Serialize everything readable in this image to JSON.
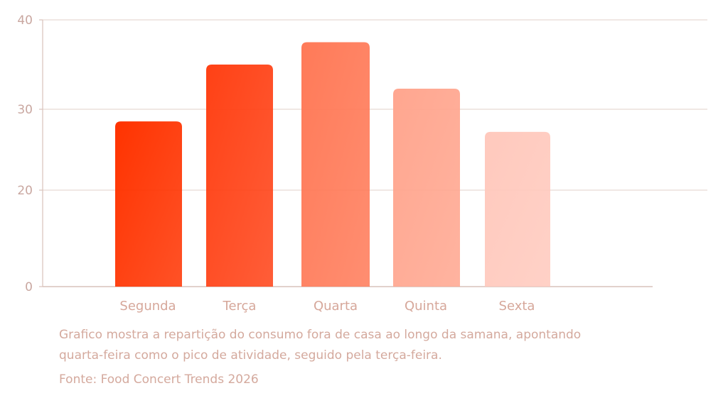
{
  "chart_data": {
    "type": "bar",
    "title": "",
    "xlabel": "",
    "ylabel": "",
    "categories": [
      "Segunda",
      "Terça",
      "Quarta",
      "Quinta",
      "Sexta"
    ],
    "values": [
      28.5,
      35,
      37.5,
      32.3,
      27.2
    ],
    "ylim": [
      0,
      40
    ],
    "yticks": [
      0,
      20,
      30,
      40
    ],
    "ytick_labels": [
      "0",
      "20",
      "30",
      "40"
    ],
    "grid": true,
    "legend": "none",
    "bar_colors": [
      "#ff3300",
      "#ff4115",
      "#ff7a58",
      "#ffa68f",
      "#ffc9bd"
    ],
    "gridline_color": "#e8d9d4",
    "axis_color": "#d9c2bb",
    "text_color": "#d4a99d"
  },
  "caption": {
    "description_line1": "Grafico mostra a repartição do consumo fora de casa ao longo da samana, apontando",
    "description_line2": "quarta-feira como o pico de atividade, seguido pela terça-feira.",
    "source": "Fonte: Food Concert Trends 2026"
  }
}
